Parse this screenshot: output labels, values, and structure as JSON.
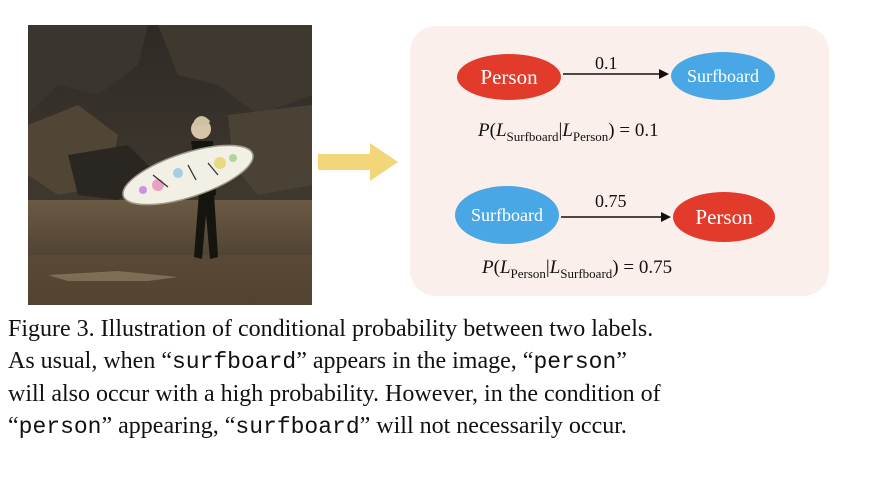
{
  "diagram": {
    "edge1": {
      "from": "Person",
      "to": "Surfboard",
      "weight": "0.1",
      "formula": {
        "p": "P",
        "target": "Surfboard",
        "given": "Person",
        "value": "0.1"
      }
    },
    "edge2": {
      "from": "Surfboard",
      "to": "Person",
      "weight": "0.75",
      "formula": {
        "p": "P",
        "target": "Person",
        "given": "Surfboard",
        "value": "0.75"
      }
    },
    "colors": {
      "person": "#e33b2b",
      "surfboard": "#4aa7e5",
      "panel": "#fbefeb",
      "arrow": "#f3d57a"
    }
  },
  "caption": {
    "line1": "Figure 3. Illustration of conditional probability between two labels.",
    "line2_a": "As usual, when “",
    "line2_b": "surfboard",
    "line2_c": "” appears in the image, “",
    "line2_d": "person",
    "line2_e": "”",
    "line3": "will also occur with a high probability. However, in the condition of",
    "line4_a": "“",
    "line4_b": "person",
    "line4_c": "” appearing, “",
    "line4_d": "surfboard",
    "line4_e": "” will not necessarily occur."
  }
}
